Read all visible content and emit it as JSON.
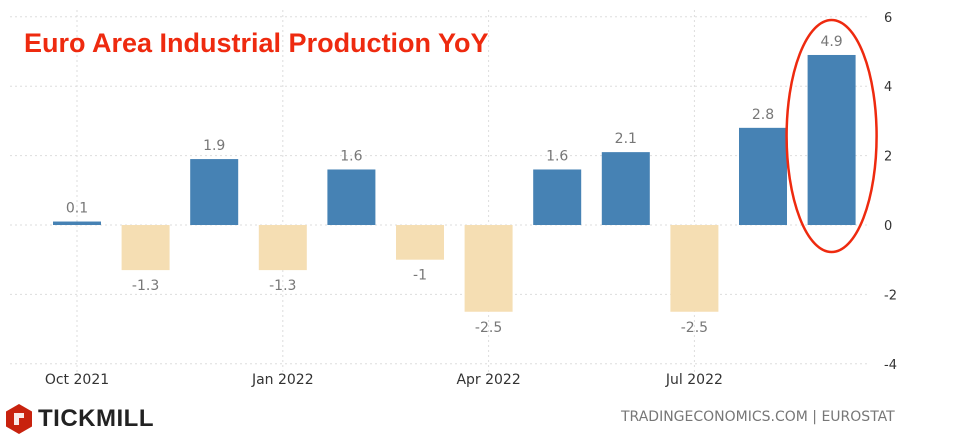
{
  "chart_data": {
    "type": "bar",
    "title": "Euro Area Industrial Production YoY",
    "categories": [
      "Oct 2021",
      "Nov 2021",
      "Dec 2021",
      "Jan 2022",
      "Feb 2022",
      "Mar 2022",
      "Apr 2022",
      "May 2022",
      "Jun 2022",
      "Jul 2022",
      "Aug 2022",
      "Sep 2022"
    ],
    "values": [
      0.1,
      -1.3,
      1.9,
      -1.3,
      1.6,
      -1,
      -2.5,
      1.6,
      2.1,
      -2.5,
      2.8,
      4.9
    ],
    "x_tick_labels": [
      "Oct 2021",
      "Jan 2022",
      "Apr 2022",
      "Jul 2022"
    ],
    "y_ticks": [
      6,
      4,
      2,
      0,
      -2,
      -4
    ],
    "ylim": [
      -4,
      6
    ],
    "xlabel": "",
    "ylabel": "",
    "grid": true,
    "colors": {
      "positive": "#4682b4",
      "negative": "#f5deb3",
      "highlight": "#ee2a0f",
      "title": "#ee2a0f"
    },
    "annotation": "red ellipse highlighting latest value"
  },
  "branding": {
    "logo": "TICKMILL",
    "source": "TRADINGECONOMICS.COM | EUROSTAT"
  }
}
